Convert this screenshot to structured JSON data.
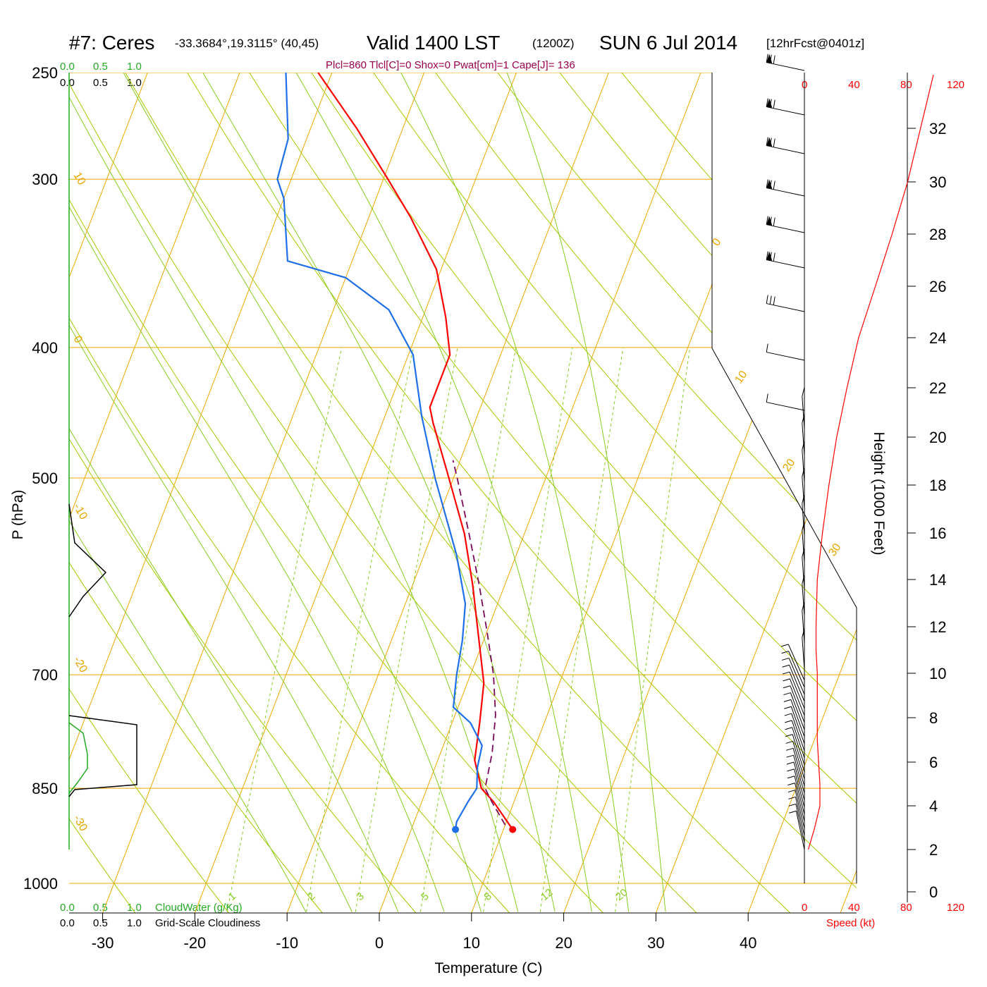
{
  "header": {
    "station": "#7: Ceres",
    "coords": "-33.3684°,19.3115° (40,45)",
    "valid": "Valid 1400 LST",
    "zulu": "(1200Z)",
    "date": "SUN 6 Jul 2014",
    "forecast": "[12hrFcst@0401z]",
    "indices": "Plcl=860 Tlcl[C]=0 Shox=0 Pwat[cm]=1 Cape[J]= 136"
  },
  "cloud_scale": {
    "top_green": [
      "0.0",
      "0.5",
      "1.0"
    ],
    "top_black": [
      "0.0",
      "0.5",
      "1.0"
    ],
    "bottom_green": [
      "0.0",
      "0.5",
      "1.0"
    ],
    "bottom_black": [
      "0.0",
      "0.5",
      "1.0"
    ],
    "cloudwater_label": "CloudWater (g/Kg)",
    "cloudiness_label": "Grid-Scale Cloudiness"
  },
  "speed_axis": {
    "top": [
      "0",
      "40",
      "80",
      "120"
    ],
    "bottom": [
      "0",
      "40",
      "80",
      "120"
    ],
    "label": "Speed (kt)"
  },
  "colors": {
    "temperature": "#ff0000",
    "dewpoint": "#1e6fe8",
    "parcel": "#7a0a5a",
    "isotherm": "#f0a800",
    "dry_adiabat": "#a8c800",
    "moist_adiabat": "#88cc22",
    "cloudwater": "#22aa22"
  },
  "chart_data": {
    "type": "line",
    "subtype": "skew-T log-p sounding",
    "xlabel": "Temperature (C)",
    "ylabel": "P (hPa)",
    "y2label": "Height (1000 Feet)",
    "x_ticks": [
      -30,
      -20,
      -10,
      0,
      10,
      20,
      30,
      40
    ],
    "p_ticks": [
      250,
      300,
      400,
      500,
      700,
      850,
      1000
    ],
    "height_ticks": [
      0,
      2,
      4,
      6,
      8,
      10,
      12,
      14,
      16,
      18,
      20,
      22,
      24,
      26,
      28,
      30,
      32
    ],
    "isotherm_labels": [
      "10",
      "0",
      "-10",
      "-20",
      "-30",
      "0",
      "10",
      "20",
      "30"
    ],
    "mixing_ratio_labels": [
      "1",
      "2",
      "3",
      "5",
      "8",
      "12",
      "20"
    ],
    "series": [
      {
        "name": "Temperature",
        "points": [
          [
            912,
            11.0
          ],
          [
            870,
            7.8
          ],
          [
            850,
            5.9
          ],
          [
            810,
            4.0
          ],
          [
            760,
            3.0
          ],
          [
            710,
            1.8
          ],
          [
            660,
            -0.5
          ],
          [
            600,
            -3.5
          ],
          [
            550,
            -6.5
          ],
          [
            500,
            -10.5
          ],
          [
            455,
            -14.5
          ],
          [
            443,
            -15.5
          ],
          [
            405,
            -15.5
          ],
          [
            380,
            -17.5
          ],
          [
            350,
            -20.5
          ],
          [
            320,
            -25.5
          ],
          [
            300,
            -29.5
          ],
          [
            275,
            -35.0
          ],
          [
            250,
            -41.5
          ]
        ]
      },
      {
        "name": "Dewpoint",
        "points": [
          [
            912,
            4.8
          ],
          [
            900,
            4.6
          ],
          [
            870,
            5.0
          ],
          [
            850,
            5.4
          ],
          [
            820,
            4.6
          ],
          [
            790,
            4.2
          ],
          [
            760,
            2.0
          ],
          [
            740,
            -0.5
          ],
          [
            720,
            -1.0
          ],
          [
            700,
            -1.5
          ],
          [
            660,
            -2.3
          ],
          [
            620,
            -3.5
          ],
          [
            570,
            -6.5
          ],
          [
            500,
            -12.0
          ],
          [
            450,
            -16.0
          ],
          [
            405,
            -19.5
          ],
          [
            375,
            -24.0
          ],
          [
            355,
            -30.0
          ],
          [
            345,
            -37.0
          ],
          [
            310,
            -40.0
          ],
          [
            300,
            -41.5
          ],
          [
            280,
            -42.0
          ],
          [
            250,
            -45.0
          ]
        ]
      },
      {
        "name": "Parcel",
        "points": [
          [
            905,
            10.0
          ],
          [
            870,
            7.6
          ],
          [
            850,
            6.3
          ],
          [
            800,
            5.6
          ],
          [
            750,
            4.4
          ],
          [
            700,
            2.5
          ],
          [
            650,
            0.0
          ],
          [
            600,
            -2.8
          ],
          [
            550,
            -6.0
          ],
          [
            500,
            -9.6
          ],
          [
            485,
            -10.8
          ]
        ]
      }
    ],
    "wind_speed_profile": {
      "unit": "kt",
      "height_kft": [
        2,
        3,
        4,
        5,
        6,
        7,
        8,
        9,
        10,
        11,
        12,
        14,
        16,
        18,
        20,
        22,
        24,
        26,
        28,
        30,
        32,
        34
      ],
      "speed": [
        3,
        8,
        12,
        12,
        11,
        10,
        10,
        10,
        10,
        9,
        9,
        10,
        14,
        19,
        25,
        33,
        42,
        55,
        68,
        80,
        90,
        100
      ]
    }
  }
}
